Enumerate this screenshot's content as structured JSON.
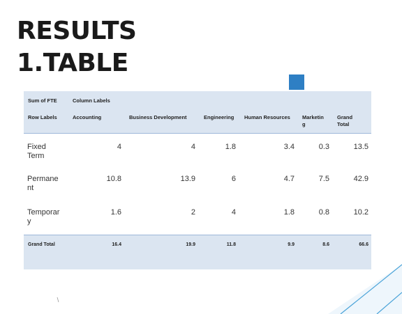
{
  "title": {
    "line1": "RESULTS",
    "line2": "1.TABLE"
  },
  "colors": {
    "header_band": "#dbe5f1",
    "accent": "#2e7fc4",
    "decor_line": "#4aa3d8"
  },
  "pivot": {
    "corner_label": "Sum of FTE",
    "column_labels_title": "Column Labels",
    "row_labels_title": "Row Labels",
    "columns": [
      "Accounting",
      "Business Development",
      "Engineering",
      "Human Resources",
      "Marketin g",
      "Grand Total"
    ],
    "rows": [
      {
        "label": "Fixed Term",
        "values": [
          "4",
          "4",
          "1.8",
          "3.4",
          "0.3",
          "13.5"
        ]
      },
      {
        "label": "Permane nt",
        "values": [
          "10.8",
          "13.9",
          "6",
          "4.7",
          "7.5",
          "42.9"
        ]
      },
      {
        "label": "Temporar y",
        "values": [
          "1.6",
          "2",
          "4",
          "1.8",
          "0.8",
          "10.2"
        ]
      }
    ],
    "grand_total": {
      "label": "Grand Total",
      "values": [
        "16.4",
        "19.9",
        "11.8",
        "9.9",
        "8.6",
        "66.6"
      ]
    }
  }
}
